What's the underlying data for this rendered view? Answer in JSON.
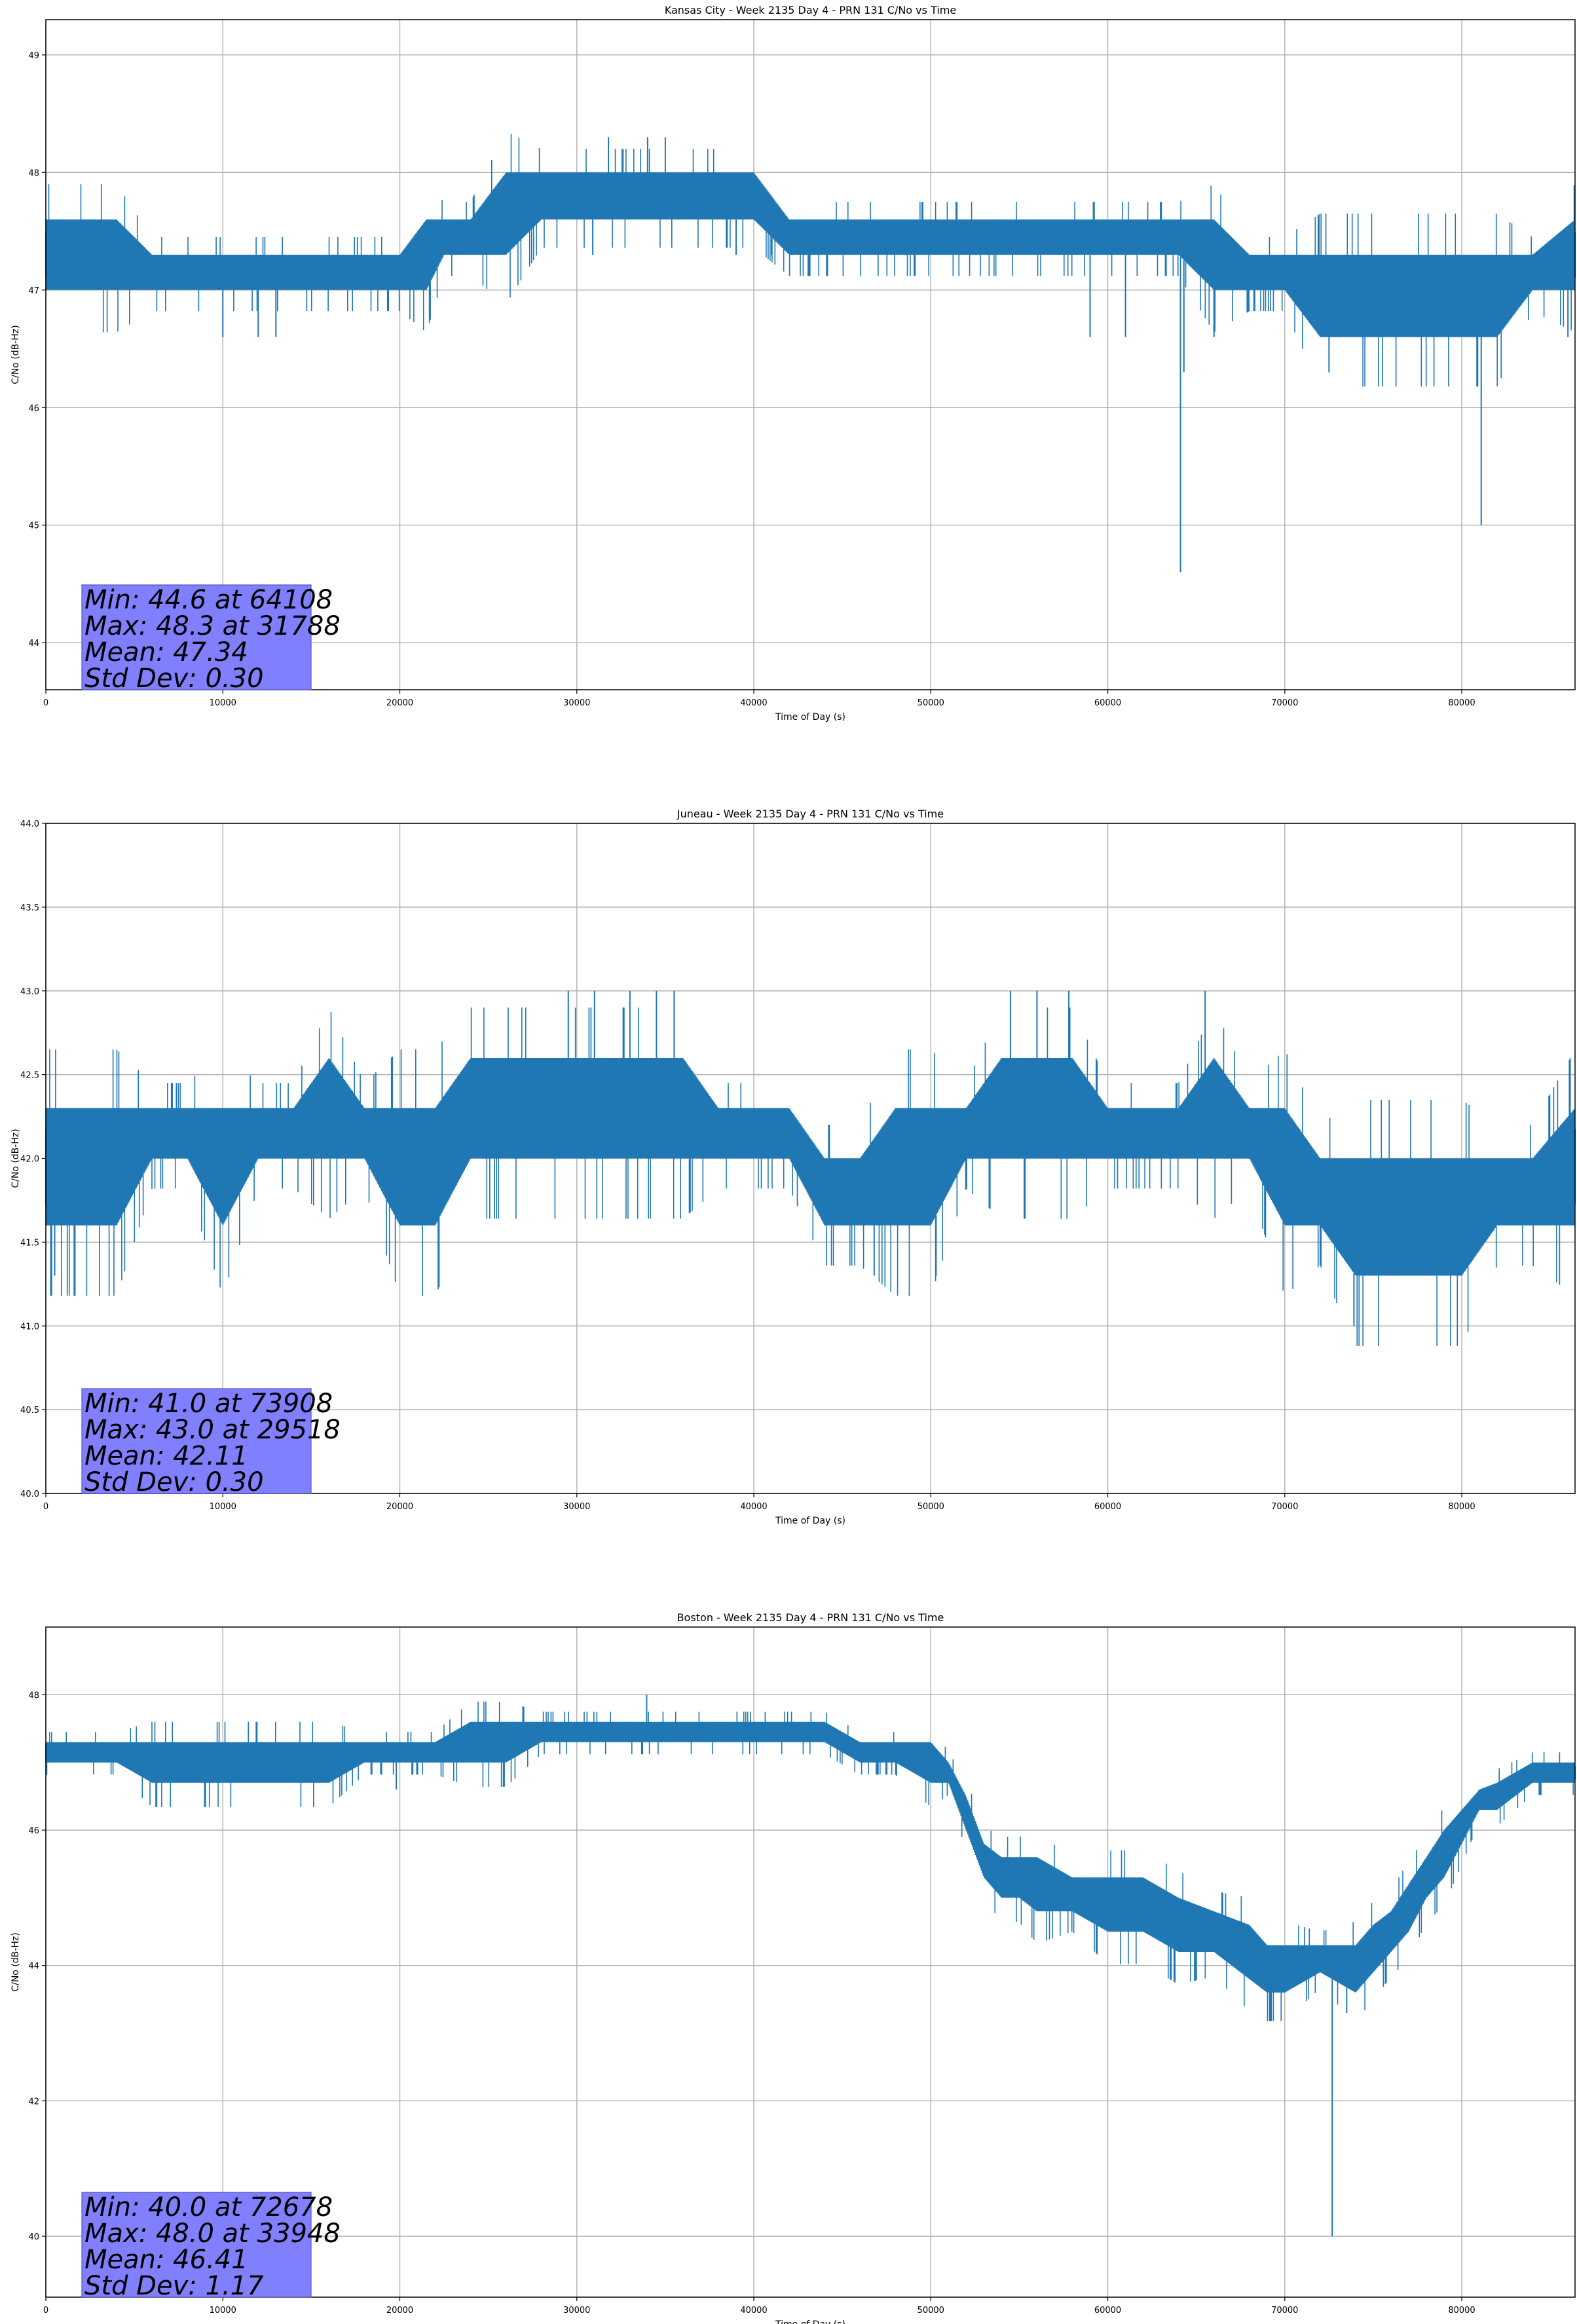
{
  "figure": {
    "panels": [
      {
        "title": "Kansas City - Week 2135 Day 4 - PRN 131 C/No vs Time",
        "xlabel": "Time of Day (s)",
        "ylabel": "C/No (dB-Hz)",
        "xticks": [
          "0",
          "10000",
          "20000",
          "30000",
          "40000",
          "50000",
          "60000",
          "70000",
          "80000"
        ],
        "yticks": [
          "44",
          "45",
          "46",
          "47",
          "48",
          "49"
        ],
        "stats": [
          "Min: 44.6 at 64108",
          "Max: 48.3 at 31788",
          "Mean: 47.34",
          "Std Dev: 0.30"
        ]
      },
      {
        "title": "Juneau - Week 2135 Day 4 - PRN 131 C/No vs Time",
        "xlabel": "Time of Day (s)",
        "ylabel": "C/No (dB-Hz)",
        "xticks": [
          "0",
          "10000",
          "20000",
          "30000",
          "40000",
          "50000",
          "60000",
          "70000",
          "80000"
        ],
        "yticks": [
          "40.0",
          "40.5",
          "41.0",
          "41.5",
          "42.0",
          "42.5",
          "43.0",
          "43.5",
          "44.0"
        ],
        "stats": [
          "Min: 41.0 at 73908",
          "Max: 43.0 at 29518",
          "Mean: 42.11",
          "Std Dev: 0.30"
        ]
      },
      {
        "title": "Boston - Week 2135 Day 4 - PRN 131 C/No vs Time",
        "xlabel": "Time of Day (s)",
        "ylabel": "C/No (dB-Hz)",
        "xticks": [
          "0",
          "10000",
          "20000",
          "30000",
          "40000",
          "50000",
          "60000",
          "70000",
          "80000"
        ],
        "yticks": [
          "40",
          "42",
          "44",
          "46",
          "48"
        ],
        "stats": [
          "Min: 40.0 at 72678",
          "Max: 48.0 at 33948",
          "Mean: 46.41",
          "Std Dev: 1.17"
        ]
      }
    ]
  },
  "colors": {
    "line": "#1f77b4",
    "grid": "#b0b0b0",
    "stats_box": "#8080ff"
  },
  "chart_data": [
    {
      "type": "line",
      "title": "Kansas City - Week 2135 Day 4 - PRN 131 C/No vs Time",
      "xlabel": "Time of Day (s)",
      "ylabel": "C/No (dB-Hz)",
      "xlim": [
        0,
        86400
      ],
      "ylim": [
        43.6,
        49.3
      ],
      "grid": true,
      "xticks": [
        0,
        10000,
        20000,
        30000,
        40000,
        50000,
        60000,
        70000,
        80000
      ],
      "yticks": [
        44,
        45,
        46,
        47,
        48,
        49
      ],
      "series": [
        {
          "x": [
            0,
            2000,
            4000,
            6000,
            8000,
            10000,
            12000,
            14000,
            16000,
            18000,
            20000,
            21500,
            22500,
            24000,
            26000,
            28000,
            30000,
            32000,
            34000,
            36000,
            38000,
            40000,
            42000,
            44000,
            46000,
            48000,
            50000,
            52000,
            54000,
            56000,
            58000,
            60000,
            62000,
            64000,
            66000,
            68000,
            70000,
            72000,
            74000,
            76000,
            78000,
            80000,
            82000,
            84000,
            86400
          ],
          "y_low": [
            47.0,
            47.0,
            47.0,
            47.0,
            47.0,
            47.0,
            47.0,
            47.0,
            47.0,
            47.0,
            47.0,
            47.0,
            47.3,
            47.3,
            47.3,
            47.6,
            47.6,
            47.6,
            47.6,
            47.6,
            47.6,
            47.6,
            47.3,
            47.3,
            47.3,
            47.3,
            47.3,
            47.3,
            47.3,
            47.3,
            47.3,
            47.3,
            47.3,
            47.3,
            47.0,
            47.0,
            47.0,
            46.6,
            46.6,
            46.6,
            46.6,
            46.6,
            46.6,
            47.0,
            47.0
          ],
          "y_high": [
            47.6,
            47.6,
            47.6,
            47.3,
            47.3,
            47.3,
            47.3,
            47.3,
            47.3,
            47.3,
            47.3,
            47.6,
            47.6,
            47.6,
            48.0,
            48.0,
            48.0,
            48.0,
            48.0,
            48.0,
            48.0,
            48.0,
            47.6,
            47.6,
            47.6,
            47.6,
            47.6,
            47.6,
            47.6,
            47.6,
            47.6,
            47.6,
            47.6,
            47.6,
            47.6,
            47.3,
            47.3,
            47.3,
            47.3,
            47.3,
            47.3,
            47.3,
            47.3,
            47.3,
            47.6
          ]
        }
      ],
      "spikes": [
        {
          "x": 10000,
          "y": 46.6
        },
        {
          "x": 12000,
          "y": 46.6
        },
        {
          "x": 13000,
          "y": 46.6
        },
        {
          "x": 30900,
          "y": 47.3
        },
        {
          "x": 31788,
          "y": 48.3
        },
        {
          "x": 34000,
          "y": 48.3
        },
        {
          "x": 35000,
          "y": 48.3
        },
        {
          "x": 39000,
          "y": 47.3
        },
        {
          "x": 41000,
          "y": 47.3
        },
        {
          "x": 59000,
          "y": 46.6
        },
        {
          "x": 61000,
          "y": 46.6
        },
        {
          "x": 64108,
          "y": 44.6
        },
        {
          "x": 64300,
          "y": 46.3
        },
        {
          "x": 66000,
          "y": 46.6
        },
        {
          "x": 72500,
          "y": 46.3
        },
        {
          "x": 81100,
          "y": 45.0
        },
        {
          "x": 86000,
          "y": 46.6
        }
      ]
    },
    {
      "type": "line",
      "title": "Juneau - Week 2135 Day 4 - PRN 131 C/No vs Time",
      "xlabel": "Time of Day (s)",
      "ylabel": "C/No (dB-Hz)",
      "xlim": [
        0,
        86400
      ],
      "ylim": [
        40.0,
        44.0
      ],
      "grid": true,
      "xticks": [
        0,
        10000,
        20000,
        30000,
        40000,
        50000,
        60000,
        70000,
        80000
      ],
      "yticks": [
        40.0,
        40.5,
        41.0,
        41.5,
        42.0,
        42.5,
        43.0,
        43.5,
        44.0
      ],
      "series": [
        {
          "x": [
            0,
            2000,
            4000,
            6000,
            8000,
            10000,
            12000,
            14000,
            16000,
            18000,
            20000,
            22000,
            24000,
            26000,
            28000,
            30000,
            32000,
            34000,
            36000,
            38000,
            40000,
            42000,
            44000,
            46000,
            48000,
            50000,
            52000,
            54000,
            56000,
            58000,
            60000,
            62000,
            64000,
            66000,
            68000,
            70000,
            72000,
            74000,
            76000,
            78000,
            80000,
            82000,
            84000,
            86400
          ],
          "y_low": [
            41.6,
            41.6,
            41.6,
            42.0,
            42.0,
            41.6,
            42.0,
            42.0,
            42.0,
            42.0,
            41.6,
            41.6,
            42.0,
            42.0,
            42.0,
            42.0,
            42.0,
            42.0,
            42.0,
            42.0,
            42.0,
            42.0,
            41.6,
            41.6,
            41.6,
            41.6,
            42.0,
            42.0,
            42.0,
            42.0,
            42.0,
            42.0,
            42.0,
            42.0,
            42.0,
            41.6,
            41.6,
            41.3,
            41.3,
            41.3,
            41.3,
            41.6,
            41.6,
            41.6
          ],
          "y_high": [
            42.3,
            42.3,
            42.3,
            42.3,
            42.3,
            42.3,
            42.3,
            42.3,
            42.6,
            42.3,
            42.3,
            42.3,
            42.6,
            42.6,
            42.6,
            42.6,
            42.6,
            42.6,
            42.6,
            42.3,
            42.3,
            42.3,
            42.0,
            42.0,
            42.3,
            42.3,
            42.3,
            42.6,
            42.6,
            42.6,
            42.3,
            42.3,
            42.3,
            42.6,
            42.3,
            42.3,
            42.0,
            42.0,
            42.0,
            42.0,
            42.0,
            42.0,
            42.0,
            42.3
          ]
        }
      ],
      "spikes": [
        {
          "x": 500,
          "y": 41.3
        },
        {
          "x": 29518,
          "y": 43.0
        },
        {
          "x": 31000,
          "y": 43.0
        },
        {
          "x": 33000,
          "y": 43.0
        },
        {
          "x": 34500,
          "y": 43.0
        },
        {
          "x": 35500,
          "y": 43.0
        },
        {
          "x": 46800,
          "y": 41.3
        },
        {
          "x": 50300,
          "y": 41.3
        },
        {
          "x": 54500,
          "y": 43.0
        },
        {
          "x": 56000,
          "y": 43.0
        },
        {
          "x": 57800,
          "y": 43.0
        },
        {
          "x": 65500,
          "y": 43.0
        },
        {
          "x": 73908,
          "y": 41.0
        },
        {
          "x": 80000,
          "y": 41.3
        }
      ]
    },
    {
      "type": "line",
      "title": "Boston - Week 2135 Day 4 - PRN 131 C/No vs Time",
      "xlabel": "Time of Day (s)",
      "ylabel": "C/No (dB-Hz)",
      "xlim": [
        0,
        86400
      ],
      "ylim": [
        39.1,
        49.0
      ],
      "grid": true,
      "xticks": [
        0,
        10000,
        20000,
        30000,
        40000,
        50000,
        60000,
        70000,
        80000
      ],
      "yticks": [
        40,
        42,
        44,
        46,
        48
      ],
      "series": [
        {
          "x": [
            0,
            2000,
            4000,
            6000,
            8000,
            10000,
            12000,
            14000,
            16000,
            18000,
            20000,
            22000,
            24000,
            26000,
            28000,
            30000,
            32000,
            34000,
            36000,
            38000,
            40000,
            42000,
            44000,
            46000,
            48000,
            50000,
            51000,
            52000,
            53000,
            54000,
            55000,
            56000,
            58000,
            60000,
            62000,
            64000,
            66000,
            68000,
            69000,
            70000,
            72000,
            74000,
            75000,
            76000,
            77000,
            78000,
            79000,
            80000,
            81000,
            82000,
            84000,
            86400
          ],
          "y_low": [
            47.0,
            47.0,
            47.0,
            46.7,
            46.7,
            46.7,
            46.7,
            46.7,
            46.7,
            47.0,
            47.0,
            47.0,
            47.0,
            47.0,
            47.3,
            47.3,
            47.3,
            47.3,
            47.3,
            47.3,
            47.3,
            47.3,
            47.3,
            47.0,
            47.0,
            46.7,
            46.7,
            46.0,
            45.3,
            45.0,
            45.0,
            44.8,
            44.8,
            44.5,
            44.5,
            44.2,
            44.2,
            43.8,
            43.6,
            43.6,
            43.9,
            43.6,
            43.9,
            44.2,
            44.5,
            45.0,
            45.3,
            45.8,
            46.3,
            46.3,
            46.7,
            46.7
          ],
          "y_high": [
            47.3,
            47.3,
            47.3,
            47.3,
            47.3,
            47.3,
            47.3,
            47.3,
            47.3,
            47.3,
            47.3,
            47.3,
            47.6,
            47.6,
            47.6,
            47.6,
            47.6,
            47.6,
            47.6,
            47.6,
            47.6,
            47.6,
            47.6,
            47.3,
            47.3,
            47.3,
            47.0,
            46.5,
            45.8,
            45.6,
            45.6,
            45.6,
            45.3,
            45.3,
            45.3,
            45.0,
            44.8,
            44.6,
            44.3,
            44.3,
            44.3,
            44.3,
            44.6,
            44.8,
            45.2,
            45.6,
            46.0,
            46.3,
            46.6,
            46.7,
            47.0,
            47.0
          ]
        }
      ],
      "spikes": [
        {
          "x": 33948,
          "y": 48.0
        },
        {
          "x": 19800,
          "y": 46.6
        },
        {
          "x": 72678,
          "y": 40.0
        },
        {
          "x": 73500,
          "y": 43.3
        }
      ]
    }
  ]
}
